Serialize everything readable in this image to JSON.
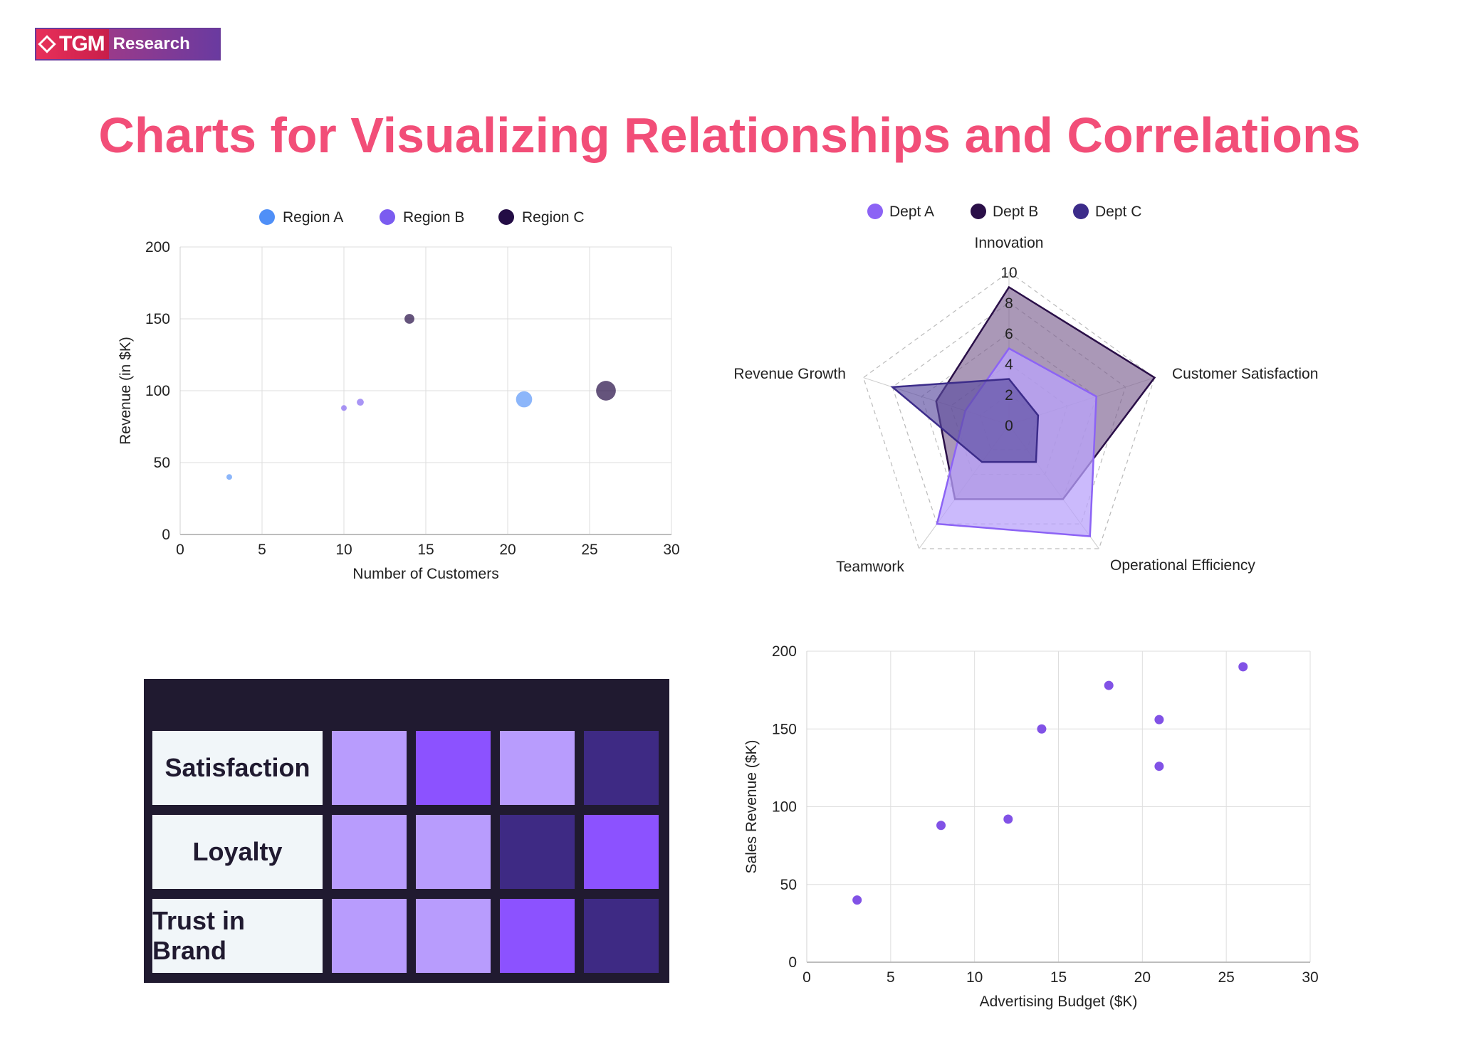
{
  "logo": {
    "text_left": "TGM",
    "text_right": "Research"
  },
  "title": "Charts for Visualizing Relationships and Correlations",
  "chart_data": [
    {
      "type": "scatter",
      "subtype": "bubble",
      "xlabel": "Number of Customers",
      "ylabel": "Revenue (in $K)",
      "xlim": [
        0,
        30
      ],
      "ylim": [
        0,
        200
      ],
      "xticks": [
        0,
        5,
        10,
        15,
        20,
        25,
        30
      ],
      "yticks": [
        0,
        50,
        100,
        150,
        200
      ],
      "grid": true,
      "legend": "top",
      "series": [
        {
          "name": "Region A",
          "color": "#4f8ff7",
          "points": [
            {
              "x": 3,
              "y": 40,
              "size": 1
            },
            {
              "x": 21,
              "y": 94,
              "size": 8
            }
          ]
        },
        {
          "name": "Region B",
          "color": "#7b5cf0",
          "points": [
            {
              "x": 10,
              "y": 88,
              "size": 1
            },
            {
              "x": 11,
              "y": 92,
              "size": 1.5
            }
          ]
        },
        {
          "name": "Region C",
          "color": "#230c45",
          "points": [
            {
              "x": 14,
              "y": 150,
              "size": 3
            },
            {
              "x": 26,
              "y": 100,
              "size": 12
            }
          ]
        }
      ]
    },
    {
      "type": "radar",
      "axes": [
        "Innovation",
        "Customer Satisfaction",
        "Operational Efficiency",
        "Teamwork",
        "Revenue Growth"
      ],
      "rlim": [
        0,
        10
      ],
      "rticks": [
        0,
        2,
        4,
        6,
        8,
        10
      ],
      "legend": "top",
      "series": [
        {
          "name": "Dept A",
          "color": "#8c63f5",
          "fill": "#b9a3fb",
          "values": [
            5,
            6,
            9,
            8,
            3
          ]
        },
        {
          "name": "Dept B",
          "color": "#2a0f48",
          "fill": "#7d6190",
          "values": [
            9,
            10,
            6,
            6,
            5
          ]
        },
        {
          "name": "Dept C",
          "color": "#3c2c8a",
          "fill": "#5a4ca0",
          "values": [
            3,
            2,
            3,
            3,
            8
          ]
        }
      ]
    },
    {
      "type": "heatmap",
      "rows": [
        "Satisfaction",
        "Loyalty",
        "Trust in Brand"
      ],
      "cell_colors": [
        [
          "#b89cfd",
          "#8c52ff",
          "#b89cfd",
          "#3e2a84"
        ],
        [
          "#b89cfd",
          "#b89cfd",
          "#3e2a84",
          "#8c52ff"
        ],
        [
          "#b89cfd",
          "#b89cfd",
          "#8c52ff",
          "#3e2a84"
        ]
      ]
    },
    {
      "type": "scatter",
      "xlabel": "Advertising Budget ($K)",
      "ylabel": "Sales Revenue ($K)",
      "xlim": [
        0,
        30
      ],
      "ylim": [
        0,
        200
      ],
      "xticks": [
        0,
        5,
        10,
        15,
        20,
        25,
        30
      ],
      "yticks": [
        0,
        50,
        100,
        150,
        200
      ],
      "grid": true,
      "color": "#8152e6",
      "points": [
        {
          "x": 3,
          "y": 40
        },
        {
          "x": 8,
          "y": 88
        },
        {
          "x": 12,
          "y": 92
        },
        {
          "x": 14,
          "y": 150
        },
        {
          "x": 18,
          "y": 178
        },
        {
          "x": 21,
          "y": 156
        },
        {
          "x": 21,
          "y": 126
        },
        {
          "x": 26,
          "y": 190
        }
      ]
    }
  ]
}
